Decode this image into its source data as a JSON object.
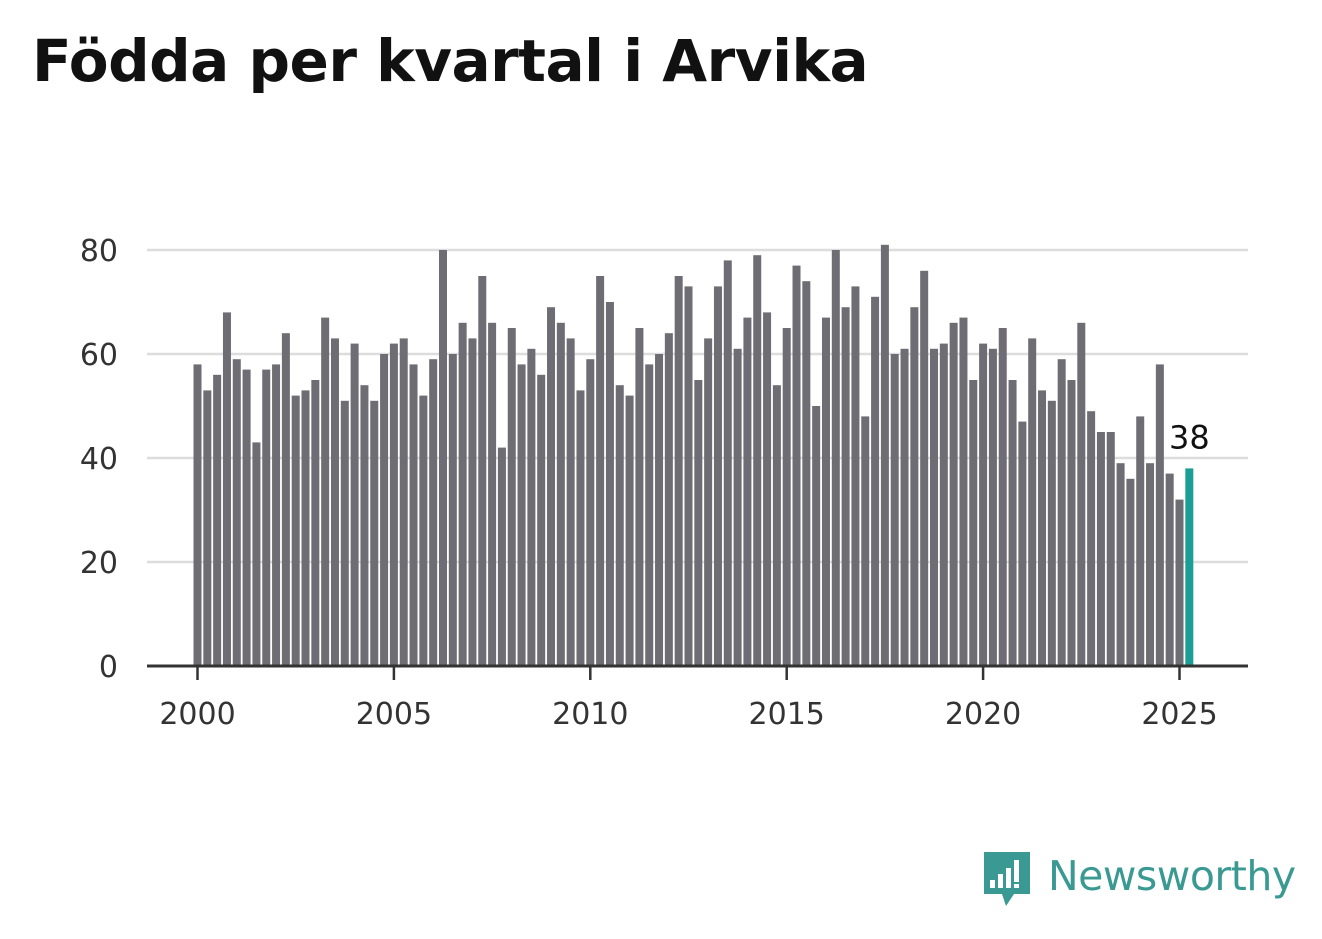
{
  "title": "Födda per kvartal i Arvika",
  "brand": {
    "name": "Newsworthy",
    "color": "#3a9a93",
    "icon": "newsworthy-logo-icon"
  },
  "colors": {
    "bar": "#6e6d73",
    "highlight": "#1a9e96",
    "grid": "#dddddd",
    "axis": "#333333"
  },
  "chart_data": {
    "type": "bar",
    "title": "Födda per kvartal i Arvika",
    "xlabel": "",
    "ylabel": "",
    "ylim": [
      0,
      80
    ],
    "yticks": [
      0,
      20,
      40,
      60,
      80
    ],
    "xticks": [
      "2000",
      "2005",
      "2010",
      "2015",
      "2020",
      "2025"
    ],
    "grid": true,
    "first_period": "2000 Q1",
    "values": [
      58,
      53,
      56,
      68,
      59,
      57,
      43,
      57,
      58,
      64,
      52,
      53,
      55,
      67,
      63,
      51,
      62,
      54,
      51,
      60,
      62,
      63,
      58,
      52,
      59,
      80,
      60,
      66,
      63,
      75,
      66,
      42,
      65,
      58,
      61,
      56,
      69,
      66,
      63,
      53,
      59,
      75,
      70,
      54,
      52,
      65,
      58,
      60,
      64,
      75,
      73,
      55,
      63,
      73,
      78,
      61,
      67,
      79,
      68,
      54,
      65,
      77,
      74,
      50,
      67,
      80,
      69,
      73,
      48,
      71,
      81,
      60,
      61,
      69,
      76,
      61,
      62,
      66,
      67,
      55,
      62,
      61,
      65,
      55,
      47,
      63,
      53,
      51,
      59,
      55,
      66,
      49,
      45,
      45,
      39,
      36,
      48,
      39,
      58,
      37,
      32,
      38
    ],
    "highlight_last": true,
    "last_value_label": "38"
  }
}
